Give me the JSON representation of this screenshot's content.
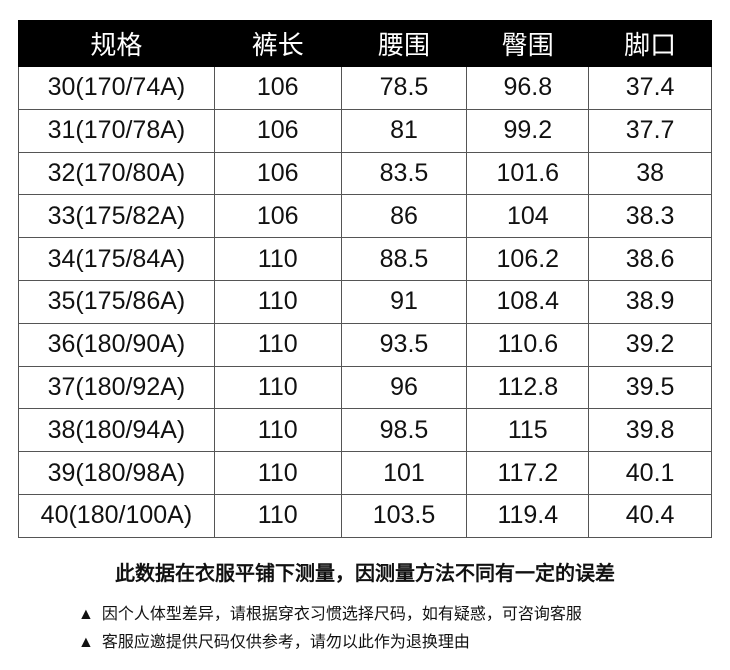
{
  "headers": [
    "规格",
    "裤长",
    "腰围",
    "臀围",
    "脚口"
  ],
  "rows": [
    [
      "30(170/74A)",
      "106",
      "78.5",
      "96.8",
      "37.4"
    ],
    [
      "31(170/78A)",
      "106",
      "81",
      "99.2",
      "37.7"
    ],
    [
      "32(170/80A)",
      "106",
      "83.5",
      "101.6",
      "38"
    ],
    [
      "33(175/82A)",
      "106",
      "86",
      "104",
      "38.3"
    ],
    [
      "34(175/84A)",
      "110",
      "88.5",
      "106.2",
      "38.6"
    ],
    [
      "35(175/86A)",
      "110",
      "91",
      "108.4",
      "38.9"
    ],
    [
      "36(180/90A)",
      "110",
      "93.5",
      "110.6",
      "39.2"
    ],
    [
      "37(180/92A)",
      "110",
      "96",
      "112.8",
      "39.5"
    ],
    [
      "38(180/94A)",
      "110",
      "98.5",
      "115",
      "39.8"
    ],
    [
      "39(180/98A)",
      "110",
      "101",
      "117.2",
      "40.1"
    ],
    [
      "40(180/100A)",
      "110",
      "103.5",
      "119.4",
      "40.4"
    ]
  ],
  "note": "此数据在衣服平铺下测量，因测量方法不同有一定的误差",
  "tips": [
    {
      "icon": "▲",
      "text": "因个人体型差异，请根据穿衣习惯选择尺码，如有疑惑，可咨询客服"
    },
    {
      "icon": "▲",
      "text": "客服应邀提供尺码仅供参考，请勿以此作为退换理由"
    }
  ]
}
